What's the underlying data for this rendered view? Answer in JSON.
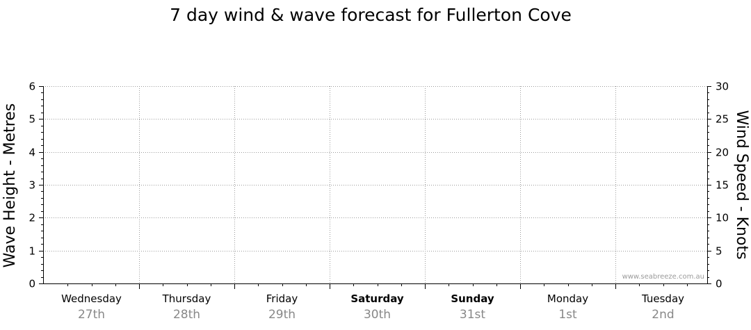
{
  "chart_data": {
    "type": "line",
    "title": "7 day wind & wave forecast for Fullerton Cove",
    "ylabel_left": "Wave Height - Metres",
    "ylabel_right": "Wind Speed - Knots",
    "ylim_left": [
      0,
      6
    ],
    "ylim_right": [
      0,
      30
    ],
    "yticks_left": [
      "0",
      "1",
      "2",
      "3",
      "4",
      "5",
      "6"
    ],
    "yticks_right": [
      "0",
      "5",
      "10",
      "15",
      "20",
      "25",
      "30"
    ],
    "grid": true,
    "days": [
      {
        "name": "Wednesday",
        "date": "27th",
        "bold": false
      },
      {
        "name": "Thursday",
        "date": "28th",
        "bold": false
      },
      {
        "name": "Friday",
        "date": "29th",
        "bold": false
      },
      {
        "name": "Saturday",
        "date": "30th",
        "bold": true
      },
      {
        "name": "Sunday",
        "date": "31st",
        "bold": true
      },
      {
        "name": "Monday",
        "date": "1st",
        "bold": false
      },
      {
        "name": "Tuesday",
        "date": "2nd",
        "bold": false
      }
    ],
    "series": []
  },
  "watermark": "www.seabreeze.com.au",
  "colors": {
    "grid": "#9a9a9a",
    "axis": "#000000",
    "date_text": "#888888",
    "watermark": "#9a9a9a"
  }
}
